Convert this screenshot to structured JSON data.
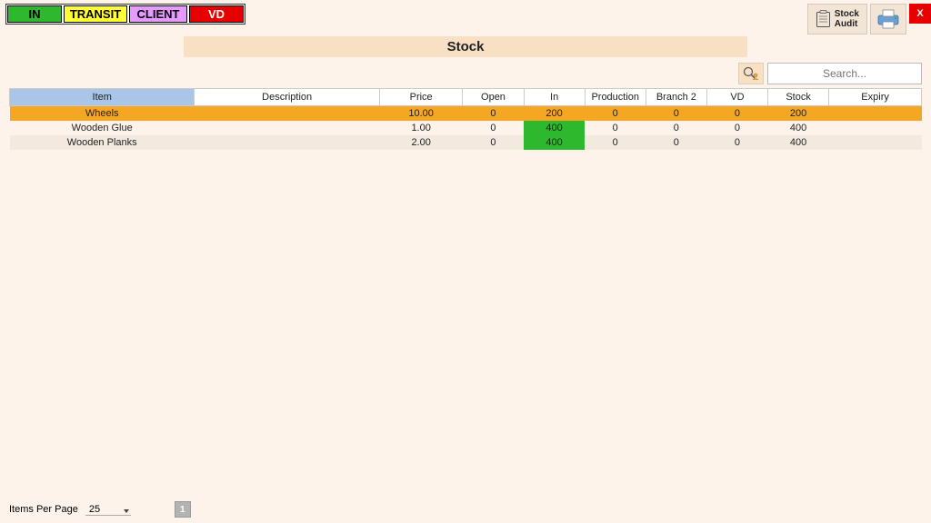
{
  "status_buttons": {
    "in": "IN",
    "transit": "TRANSIT",
    "client": "CLIENT",
    "vd": "VD"
  },
  "toolbar": {
    "stock_audit_line1": "Stock",
    "stock_audit_line2": "Audit",
    "close_label": "X"
  },
  "page_title": "Stock",
  "search": {
    "placeholder": "Search..."
  },
  "columns": {
    "item": "Item",
    "description": "Description",
    "price": "Price",
    "open": "Open",
    "in": "In",
    "production": "Production",
    "branch2": "Branch 2",
    "vd": "VD",
    "stock": "Stock",
    "expiry": "Expiry"
  },
  "colors": {
    "row_selected": "#f5a623",
    "row_alt": "#f2e9df",
    "cell_highlight": "#2eb82e",
    "header_item": "#a9c5e8",
    "page_bg": "#fdf3eb"
  },
  "rows": [
    {
      "item": "Wheels",
      "description": "",
      "price": "10.00",
      "open": "0",
      "in": "200",
      "production": "0",
      "branch2": "0",
      "vd": "0",
      "stock": "200",
      "expiry": "",
      "row_style": "orange",
      "in_highlight": false
    },
    {
      "item": "Wooden Glue",
      "description": "",
      "price": "1.00",
      "open": "0",
      "in": "400",
      "production": "0",
      "branch2": "0",
      "vd": "0",
      "stock": "400",
      "expiry": "",
      "row_style": "plain",
      "in_highlight": true
    },
    {
      "item": "Wooden Planks",
      "description": "",
      "price": "2.00",
      "open": "0",
      "in": "400",
      "production": "0",
      "branch2": "0",
      "vd": "0",
      "stock": "400",
      "expiry": "",
      "row_style": "alt",
      "in_highlight": true
    }
  ],
  "footer": {
    "items_per_page_label": "Items Per Page",
    "items_per_page_value": "25",
    "current_page": "1"
  }
}
